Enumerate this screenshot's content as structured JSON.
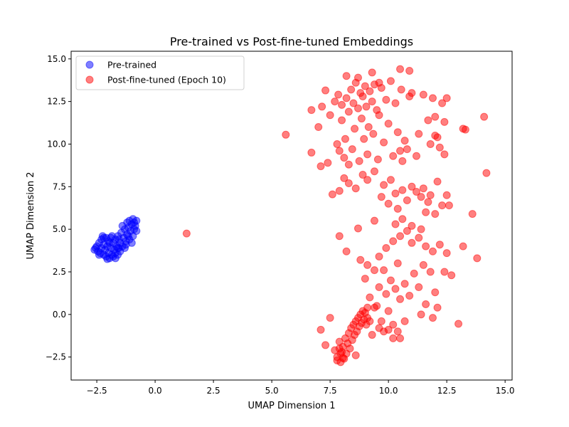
{
  "chart_data": {
    "type": "scatter",
    "title": "Pre-trained vs Post-fine-tuned Embeddings",
    "xlabel": "UMAP Dimension 1",
    "ylabel": "UMAP Dimension 2",
    "xlim": [
      -3.6,
      15.3
    ],
    "ylim": [
      -3.85,
      15.45
    ],
    "xticks": [
      -2.5,
      0.0,
      2.5,
      5.0,
      7.5,
      10.0,
      12.5,
      15.0
    ],
    "xtick_labels": [
      "−2.5",
      "0.0",
      "2.5",
      "5.0",
      "7.5",
      "10.0",
      "12.5",
      "15.0"
    ],
    "yticks": [
      -2.5,
      0.0,
      2.5,
      5.0,
      7.5,
      10.0,
      12.5,
      15.0
    ],
    "ytick_labels": [
      "−2.5",
      "0.0",
      "2.5",
      "5.0",
      "7.5",
      "10.0",
      "12.5",
      "15.0"
    ],
    "grid": false,
    "legend_position": "top-left",
    "series": [
      {
        "name": "Pre-trained",
        "color": "#0000ff",
        "alpha": 0.5,
        "points": [
          [
            -2.6,
            3.8
          ],
          [
            -2.55,
            3.9
          ],
          [
            -2.5,
            4.0
          ],
          [
            -2.45,
            3.7
          ],
          [
            -2.4,
            4.2
          ],
          [
            -2.35,
            3.6
          ],
          [
            -2.3,
            4.4
          ],
          [
            -2.3,
            3.9
          ],
          [
            -2.25,
            4.6
          ],
          [
            -2.2,
            3.5
          ],
          [
            -2.2,
            4.1
          ],
          [
            -2.15,
            3.8
          ],
          [
            -2.1,
            4.5
          ],
          [
            -2.1,
            3.4
          ],
          [
            -2.05,
            4.0
          ],
          [
            -2.0,
            3.6
          ],
          [
            -2.0,
            4.3
          ],
          [
            -1.95,
            3.3
          ],
          [
            -1.9,
            3.9
          ],
          [
            -1.9,
            4.5
          ],
          [
            -1.85,
            3.5
          ],
          [
            -1.8,
            4.2
          ],
          [
            -1.8,
            3.4
          ],
          [
            -1.75,
            3.8
          ],
          [
            -1.7,
            4.4
          ],
          [
            -1.7,
            3.6
          ],
          [
            -1.65,
            4.0
          ],
          [
            -1.6,
            3.5
          ],
          [
            -1.6,
            4.6
          ],
          [
            -1.55,
            3.9
          ],
          [
            -1.5,
            4.2
          ],
          [
            -1.5,
            3.7
          ],
          [
            -1.45,
            4.8
          ],
          [
            -1.4,
            4.0
          ],
          [
            -1.4,
            5.2
          ],
          [
            -1.35,
            4.5
          ],
          [
            -1.3,
            5.0
          ],
          [
            -1.3,
            3.9
          ],
          [
            -1.25,
            4.3
          ],
          [
            -1.2,
            5.4
          ],
          [
            -1.2,
            4.7
          ],
          [
            -1.15,
            5.1
          ],
          [
            -1.1,
            4.4
          ],
          [
            -1.1,
            5.5
          ],
          [
            -1.05,
            4.9
          ],
          [
            -1.0,
            5.3
          ],
          [
            -1.0,
            4.2
          ],
          [
            -0.95,
            5.6
          ],
          [
            -0.9,
            5.0
          ],
          [
            -0.9,
            5.4
          ],
          [
            -0.85,
            5.2
          ],
          [
            -0.8,
            5.5
          ],
          [
            -0.8,
            4.9
          ],
          [
            -2.4,
            3.5
          ],
          [
            -2.05,
            3.25
          ],
          [
            -1.7,
            3.3
          ],
          [
            -1.55,
            4.4
          ],
          [
            -1.25,
            4.1
          ],
          [
            -0.95,
            4.6
          ],
          [
            -1.15,
            4.6
          ],
          [
            -2.2,
            4.5
          ],
          [
            -1.95,
            4.2
          ],
          [
            -1.85,
            4.6
          ],
          [
            -1.6,
            3.9
          ]
        ]
      },
      {
        "name": "Post-fine-tuned (Epoch 10)",
        "color": "#ff0000",
        "alpha": 0.5,
        "points": [
          [
            1.35,
            4.75
          ],
          [
            5.6,
            10.55
          ],
          [
            6.7,
            12.0
          ],
          [
            6.7,
            9.5
          ],
          [
            7.0,
            11.0
          ],
          [
            7.1,
            8.7
          ],
          [
            7.15,
            12.2
          ],
          [
            7.3,
            13.15
          ],
          [
            7.5,
            11.7
          ],
          [
            7.6,
            7.05
          ],
          [
            7.7,
            12.5
          ],
          [
            7.8,
            10.0
          ],
          [
            7.85,
            12.9
          ],
          [
            7.9,
            9.6
          ],
          [
            8.0,
            11.4
          ],
          [
            8.0,
            12.3
          ],
          [
            8.1,
            9.2
          ],
          [
            8.15,
            10.3
          ],
          [
            8.2,
            12.7
          ],
          [
            8.3,
            11.9
          ],
          [
            8.3,
            8.8
          ],
          [
            8.4,
            13.2
          ],
          [
            8.45,
            9.7
          ],
          [
            8.5,
            12.4
          ],
          [
            8.55,
            10.9
          ],
          [
            8.6,
            13.6
          ],
          [
            8.7,
            12.1
          ],
          [
            8.75,
            9.0
          ],
          [
            8.8,
            13.0
          ],
          [
            8.85,
            11.5
          ],
          [
            8.9,
            12.8
          ],
          [
            8.95,
            10.3
          ],
          [
            9.0,
            13.4
          ],
          [
            9.05,
            12.2
          ],
          [
            9.1,
            9.4
          ],
          [
            9.15,
            11.0
          ],
          [
            9.2,
            13.1
          ],
          [
            9.3,
            12.5
          ],
          [
            9.35,
            10.6
          ],
          [
            9.4,
            13.5
          ],
          [
            9.5,
            12.0
          ],
          [
            9.55,
            9.1
          ],
          [
            9.6,
            11.7
          ],
          [
            9.7,
            13.3
          ],
          [
            9.8,
            10.1
          ],
          [
            9.9,
            12.6
          ],
          [
            10.0,
            11.2
          ],
          [
            10.1,
            13.7
          ],
          [
            10.2,
            9.3
          ],
          [
            10.3,
            12.4
          ],
          [
            10.4,
            10.7
          ],
          [
            10.5,
            9.6
          ],
          [
            10.55,
            13.2
          ],
          [
            10.6,
            9.0
          ],
          [
            10.7,
            10.2
          ],
          [
            10.8,
            9.7
          ],
          [
            10.9,
            12.8
          ],
          [
            11.0,
            13.0
          ],
          [
            11.2,
            9.3
          ],
          [
            11.3,
            10.6
          ],
          [
            11.5,
            12.9
          ],
          [
            11.7,
            11.4
          ],
          [
            11.8,
            10.0
          ],
          [
            11.9,
            12.7
          ],
          [
            12.0,
            11.6
          ],
          [
            12.1,
            10.4
          ],
          [
            12.2,
            9.8
          ],
          [
            12.3,
            12.4
          ],
          [
            12.4,
            9.4
          ],
          [
            12.0,
            10.5
          ],
          [
            12.5,
            12.7
          ],
          [
            12.4,
            11.3
          ],
          [
            13.2,
            10.9
          ],
          [
            13.3,
            10.85
          ],
          [
            14.1,
            11.6
          ],
          [
            14.2,
            8.3
          ],
          [
            8.2,
            14.0
          ],
          [
            8.7,
            13.9
          ],
          [
            9.3,
            14.2
          ],
          [
            9.6,
            13.6
          ],
          [
            10.5,
            14.4
          ],
          [
            10.9,
            14.3
          ],
          [
            7.4,
            8.9
          ],
          [
            7.9,
            7.25
          ],
          [
            8.1,
            8.0
          ],
          [
            8.3,
            7.7
          ],
          [
            8.6,
            7.4
          ],
          [
            8.9,
            8.2
          ],
          [
            9.1,
            7.9
          ],
          [
            9.4,
            8.4
          ],
          [
            9.8,
            7.6
          ],
          [
            10.1,
            7.9
          ],
          [
            10.3,
            7.1
          ],
          [
            10.6,
            7.3
          ],
          [
            10.8,
            6.7
          ],
          [
            11.0,
            7.5
          ],
          [
            11.2,
            7.2
          ],
          [
            11.4,
            6.9
          ],
          [
            11.5,
            7.4
          ],
          [
            11.7,
            6.6
          ],
          [
            11.8,
            7.0
          ],
          [
            12.1,
            7.8
          ],
          [
            12.3,
            6.4
          ],
          [
            12.5,
            7.0
          ],
          [
            12.6,
            6.4
          ],
          [
            12.0,
            5.9
          ],
          [
            11.6,
            6.0
          ],
          [
            10.4,
            6.2
          ],
          [
            10.0,
            6.5
          ],
          [
            9.7,
            6.9
          ],
          [
            9.4,
            5.5
          ],
          [
            8.7,
            5.05
          ],
          [
            7.9,
            4.6
          ],
          [
            8.2,
            3.7
          ],
          [
            8.8,
            3.2
          ],
          [
            9.1,
            2.9
          ],
          [
            9.4,
            2.6
          ],
          [
            9.6,
            3.4
          ],
          [
            9.9,
            3.9
          ],
          [
            10.2,
            4.3
          ],
          [
            10.5,
            4.6
          ],
          [
            10.8,
            4.9
          ],
          [
            11.0,
            4.2
          ],
          [
            11.3,
            4.5
          ],
          [
            11.6,
            4.0
          ],
          [
            11.9,
            3.7
          ],
          [
            12.2,
            4.1
          ],
          [
            12.5,
            3.6
          ],
          [
            12.7,
            2.3
          ],
          [
            13.2,
            4.0
          ],
          [
            13.8,
            3.3
          ],
          [
            13.6,
            5.9
          ],
          [
            10.3,
            5.3
          ],
          [
            10.6,
            5.6
          ],
          [
            11.0,
            5.2
          ],
          [
            11.4,
            5.0
          ],
          [
            9.6,
            1.6
          ],
          [
            9.9,
            1.2
          ],
          [
            10.1,
            2.0
          ],
          [
            10.3,
            1.5
          ],
          [
            10.5,
            0.9
          ],
          [
            10.7,
            1.8
          ],
          [
            10.9,
            1.1
          ],
          [
            11.1,
            2.4
          ],
          [
            11.3,
            1.6
          ],
          [
            11.5,
            2.9
          ],
          [
            11.6,
            0.6
          ],
          [
            11.8,
            2.5
          ],
          [
            12.0,
            1.3
          ],
          [
            12.1,
            0.4
          ],
          [
            11.9,
            -0.2
          ],
          [
            11.4,
            0.0
          ],
          [
            10.7,
            -0.4
          ],
          [
            10.2,
            -0.6
          ],
          [
            10.0,
            0.2
          ],
          [
            9.7,
            -0.4
          ],
          [
            9.4,
            0.4
          ],
          [
            9.1,
            -0.2
          ],
          [
            9.2,
            1.0
          ],
          [
            9.0,
            2.1
          ],
          [
            9.8,
            2.6
          ],
          [
            10.4,
            3.0
          ],
          [
            12.4,
            2.5
          ],
          [
            13.0,
            -0.55
          ],
          [
            7.3,
            -1.8
          ],
          [
            7.1,
            -0.9
          ],
          [
            7.5,
            -0.2
          ],
          [
            7.7,
            -2.1
          ],
          [
            7.8,
            -2.5
          ],
          [
            7.9,
            -1.6
          ],
          [
            7.95,
            -2.8
          ],
          [
            8.0,
            -2.2
          ],
          [
            8.05,
            -1.9
          ],
          [
            8.1,
            -2.6
          ],
          [
            8.15,
            -1.4
          ],
          [
            8.2,
            -2.3
          ],
          [
            8.25,
            -1.7
          ],
          [
            8.3,
            -1.1
          ],
          [
            8.35,
            -2.0
          ],
          [
            8.4,
            -0.8
          ],
          [
            8.45,
            -1.5
          ],
          [
            8.5,
            -0.6
          ],
          [
            8.55,
            -1.2
          ],
          [
            8.6,
            -0.4
          ],
          [
            8.65,
            -1.0
          ],
          [
            8.7,
            -0.2
          ],
          [
            8.75,
            -0.7
          ],
          [
            8.8,
            0.0
          ],
          [
            8.85,
            -0.5
          ],
          [
            8.9,
            0.2
          ],
          [
            8.95,
            -0.3
          ],
          [
            9.0,
            0.1
          ],
          [
            9.05,
            -0.6
          ],
          [
            9.1,
            0.4
          ],
          [
            9.2,
            -0.4
          ],
          [
            9.3,
            -1.2
          ],
          [
            9.5,
            0.5
          ],
          [
            9.6,
            -0.8
          ],
          [
            9.8,
            -1.0
          ],
          [
            10.0,
            -0.9
          ],
          [
            10.2,
            -1.4
          ],
          [
            10.4,
            -1.0
          ],
          [
            10.5,
            -1.4
          ],
          [
            8.6,
            -2.4
          ],
          [
            7.8,
            -2.7
          ],
          [
            7.95,
            -2.3
          ],
          [
            8.05,
            -2.55
          ],
          [
            7.9,
            -2.0
          ]
        ]
      }
    ]
  }
}
